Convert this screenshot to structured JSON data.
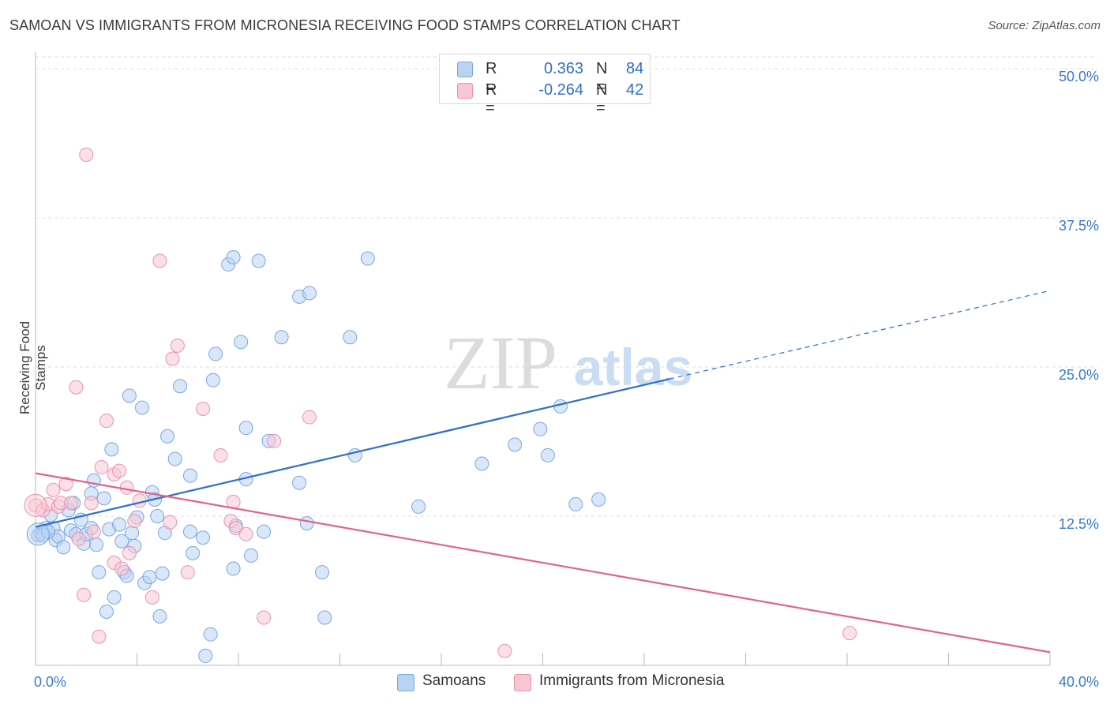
{
  "title": "SAMOAN VS IMMIGRANTS FROM MICRONESIA RECEIVING FOOD STAMPS CORRELATION CHART",
  "source": "Source: ZipAtlas.com",
  "watermark": {
    "zip": "ZIP",
    "atlas": "atlas"
  },
  "legend": {
    "r_label": "R =",
    "n_label": "N =",
    "rows": [
      {
        "r": "0.363",
        "n": "84",
        "color": "#a9c8ef"
      },
      {
        "r": "-0.264",
        "n": "42",
        "color": "#f5b9ca"
      }
    ]
  },
  "bottom_legend": {
    "samoans": "Samoans",
    "micronesia": "Immigrants from Micronesia"
  },
  "chart_data": {
    "type": "scatter",
    "title": "SAMOAN VS IMMIGRANTS FROM MICRONESIA RECEIVING FOOD STAMPS CORRELATION CHART",
    "xlabel": "",
    "ylabel": "Receiving Food Stamps",
    "xlim": [
      0,
      40
    ],
    "ylim": [
      0,
      51
    ],
    "x_tick_labels": [
      "0.0%",
      "40.0%"
    ],
    "y_ticks": [
      12.5,
      25.0,
      37.5,
      50.0
    ],
    "y_tick_labels": [
      "12.5%",
      "25.0%",
      "37.5%",
      "50.0%"
    ],
    "grid": true,
    "series": [
      {
        "name": "Samoans",
        "color": "#7aa7e0",
        "fill": "#b9d3f3",
        "line_color": "#2e6fcc",
        "r": 0.363,
        "n": 84,
        "trend": {
          "x0": 0,
          "y0": 11.6,
          "x1": 25,
          "y1": 24.0,
          "dash_x1": 40,
          "dash_y1": 31.4
        },
        "points": [
          [
            0.2,
            11.0
          ],
          [
            0.4,
            11.5
          ],
          [
            0.6,
            12.6
          ],
          [
            0.7,
            11.5
          ],
          [
            0.8,
            10.5
          ],
          [
            0.9,
            10.8
          ],
          [
            1.1,
            9.9
          ],
          [
            1.3,
            13.0
          ],
          [
            1.4,
            11.3
          ],
          [
            1.5,
            13.6
          ],
          [
            1.6,
            11.0
          ],
          [
            1.8,
            12.2
          ],
          [
            1.9,
            10.2
          ],
          [
            2.0,
            11.0
          ],
          [
            2.2,
            11.5
          ],
          [
            2.3,
            15.5
          ],
          [
            2.2,
            14.4
          ],
          [
            2.4,
            10.1
          ],
          [
            2.5,
            7.8
          ],
          [
            2.7,
            14.0
          ],
          [
            2.8,
            4.5
          ],
          [
            2.9,
            11.4
          ],
          [
            3.0,
            18.1
          ],
          [
            3.1,
            5.7
          ],
          [
            3.3,
            11.8
          ],
          [
            3.4,
            10.4
          ],
          [
            3.5,
            7.8
          ],
          [
            3.6,
            7.5
          ],
          [
            3.7,
            22.6
          ],
          [
            3.8,
            11.1
          ],
          [
            3.9,
            10.0
          ],
          [
            4.0,
            12.4
          ],
          [
            4.2,
            21.6
          ],
          [
            4.3,
            6.9
          ],
          [
            4.5,
            7.4
          ],
          [
            4.6,
            14.5
          ],
          [
            4.7,
            13.9
          ],
          [
            4.8,
            12.5
          ],
          [
            4.9,
            4.1
          ],
          [
            5.0,
            7.7
          ],
          [
            5.1,
            11.1
          ],
          [
            5.2,
            19.2
          ],
          [
            5.5,
            17.3
          ],
          [
            5.7,
            23.4
          ],
          [
            6.1,
            11.2
          ],
          [
            6.1,
            15.9
          ],
          [
            6.2,
            9.4
          ],
          [
            6.6,
            10.7
          ],
          [
            6.7,
            0.8
          ],
          [
            6.9,
            2.6
          ],
          [
            7.0,
            23.9
          ],
          [
            7.1,
            26.1
          ],
          [
            7.6,
            33.6
          ],
          [
            7.8,
            34.2
          ],
          [
            7.9,
            11.7
          ],
          [
            7.8,
            8.1
          ],
          [
            8.1,
            27.1
          ],
          [
            8.3,
            19.9
          ],
          [
            8.3,
            15.6
          ],
          [
            8.5,
            9.2
          ],
          [
            8.8,
            33.9
          ],
          [
            9.0,
            11.2
          ],
          [
            9.2,
            18.8
          ],
          [
            9.7,
            27.5
          ],
          [
            10.4,
            15.3
          ],
          [
            10.4,
            30.9
          ],
          [
            10.7,
            11.9
          ],
          [
            10.8,
            31.2
          ],
          [
            11.3,
            7.8
          ],
          [
            11.4,
            4.0
          ],
          [
            12.4,
            27.5
          ],
          [
            12.6,
            17.6
          ],
          [
            13.1,
            34.1
          ],
          [
            15.1,
            13.3
          ],
          [
            17.6,
            16.9
          ],
          [
            18.9,
            18.5
          ],
          [
            19.9,
            19.8
          ],
          [
            20.2,
            17.6
          ],
          [
            20.7,
            21.7
          ],
          [
            21.3,
            13.5
          ],
          [
            22.2,
            13.9
          ],
          [
            0.1,
            10.9
          ],
          [
            0.3,
            10.9
          ],
          [
            0.5,
            11.2
          ]
        ]
      },
      {
        "name": "Immigrants from Micronesia",
        "color": "#eb93ad",
        "fill": "#f8c7d5",
        "line_color": "#e0638e",
        "r": -0.264,
        "n": 42,
        "trend": {
          "x0": 0,
          "y0": 16.1,
          "x1": 40,
          "y1": 1.1
        },
        "points": [
          [
            0.0,
            13.4
          ],
          [
            0.3,
            13.0
          ],
          [
            0.5,
            13.5
          ],
          [
            0.7,
            14.7
          ],
          [
            0.9,
            13.3
          ],
          [
            1.0,
            13.6
          ],
          [
            1.2,
            15.2
          ],
          [
            1.4,
            13.6
          ],
          [
            1.6,
            23.3
          ],
          [
            1.7,
            10.6
          ],
          [
            1.9,
            5.9
          ],
          [
            2.0,
            42.8
          ],
          [
            2.2,
            13.6
          ],
          [
            2.3,
            11.2
          ],
          [
            2.5,
            2.4
          ],
          [
            2.6,
            16.6
          ],
          [
            2.8,
            20.5
          ],
          [
            3.1,
            16.0
          ],
          [
            3.1,
            8.6
          ],
          [
            3.3,
            16.3
          ],
          [
            3.4,
            8.1
          ],
          [
            3.6,
            14.9
          ],
          [
            3.7,
            9.4
          ],
          [
            3.9,
            12.1
          ],
          [
            4.1,
            13.8
          ],
          [
            4.6,
            5.7
          ],
          [
            4.9,
            33.9
          ],
          [
            5.3,
            12.0
          ],
          [
            5.4,
            25.7
          ],
          [
            5.6,
            26.8
          ],
          [
            6.0,
            7.8
          ],
          [
            6.6,
            21.5
          ],
          [
            7.3,
            17.6
          ],
          [
            7.7,
            12.1
          ],
          [
            7.8,
            13.7
          ],
          [
            7.9,
            11.5
          ],
          [
            8.3,
            11.0
          ],
          [
            9.0,
            4.0
          ],
          [
            9.4,
            18.8
          ],
          [
            10.8,
            20.8
          ],
          [
            18.5,
            1.2
          ],
          [
            32.1,
            2.7
          ]
        ]
      }
    ]
  }
}
